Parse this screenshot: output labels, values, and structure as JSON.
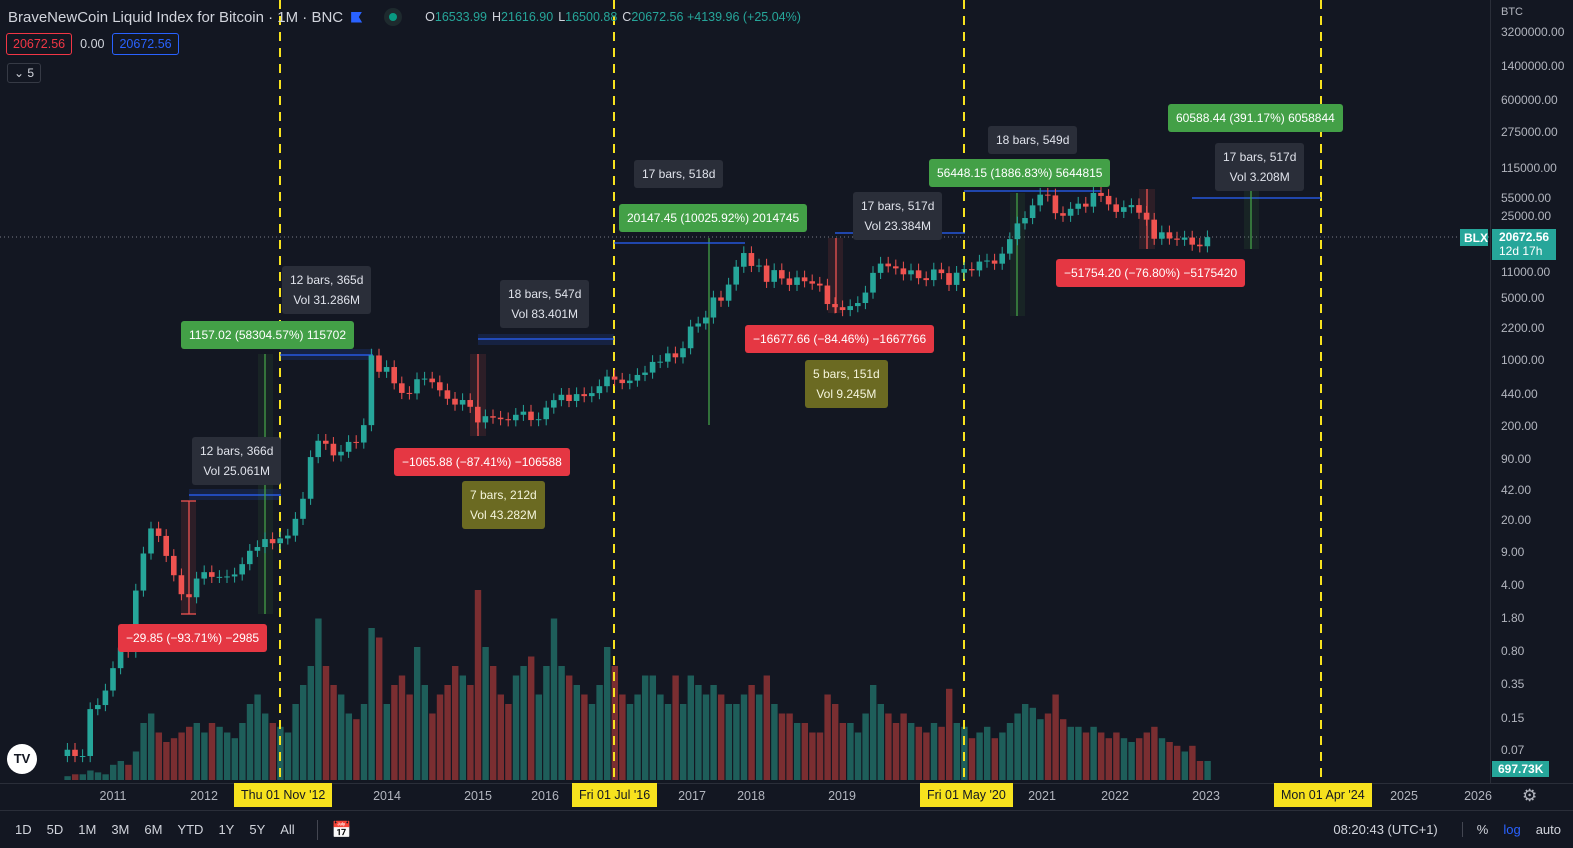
{
  "header": {
    "title": "BraveNewCoin Liquid Index for Bitcoin · 1M · BNC",
    "o_label": "O",
    "o": "16533.99",
    "h_label": "H",
    "h": "21616.90",
    "l_label": "L",
    "l": "16500.88",
    "c_label": "C",
    "c": "20672.56",
    "change": "+4139.96 (+25.04%)",
    "sell": "20672.56",
    "spread": "0.00",
    "buy": "20672.56",
    "indicators_toggle": "5"
  },
  "price_axis": {
    "currency": "BTC",
    "ticks": [
      "3200000.00",
      "1400000.00",
      "600000.00",
      "275000.00",
      "115000.00",
      "55000.00",
      "25000.00",
      "11000.00",
      "5000.00",
      "2200.00",
      "1000.00",
      "440.00",
      "200.00",
      "90.00",
      "42.00",
      "20.00",
      "9.00",
      "4.00",
      "1.80",
      "0.80",
      "0.35",
      "0.15",
      "0.07"
    ],
    "symbol_tag": "BLX",
    "last_price": "20672.56",
    "countdown": "12d 17h",
    "volume_tag": "697.73K"
  },
  "time_axis": {
    "years": [
      "2011",
      "2012",
      "2014",
      "2015",
      "2016",
      "2017",
      "2018",
      "2019",
      "2021",
      "2022",
      "2023",
      "2025",
      "2026"
    ],
    "highlights": [
      "Thu 01 Nov '12",
      "Fri 01 Jul '16",
      "Fri 01 May '20",
      "Mon 01 Apr '24"
    ]
  },
  "annotations": [
    {
      "l1": "12 bars, 366d",
      "l2": "Vol 25.061M"
    },
    {
      "l1": "12 bars, 365d",
      "l2": "Vol 31.286M"
    },
    {
      "l1": "1157.02 (58304.57%) 115702"
    },
    {
      "l1": "−29.85 (−93.71%) −2985"
    },
    {
      "l1": "−1065.88 (−87.41%) −106588"
    },
    {
      "l1": "7 bars, 212d",
      "l2": "Vol 43.282M"
    },
    {
      "l1": "18 bars, 547d",
      "l2": "Vol 83.401M"
    },
    {
      "l1": "17 bars, 518d"
    },
    {
      "l1": "20147.45 (10025.92%) 2014745"
    },
    {
      "l1": "17 bars, 517d",
      "l2": "Vol 23.384M"
    },
    {
      "l1": "−16677.66 (−84.46%) −1667766"
    },
    {
      "l1": "5 bars, 151d",
      "l2": "Vol 9.245M"
    },
    {
      "l1": "18 bars, 549d"
    },
    {
      "l1": "56448.15 (1886.83%) 5644815"
    },
    {
      "l1": "−51754.20 (−76.80%) −5175420"
    },
    {
      "l1": "17 bars, 517d",
      "l2": "Vol 3.208M"
    },
    {
      "l1": "60588.44 (391.17%) 6058844"
    }
  ],
  "bottom": {
    "ranges": [
      "1D",
      "5D",
      "1M",
      "3M",
      "6M",
      "YTD",
      "1Y",
      "5Y",
      "All"
    ],
    "time": "08:20:43 (UTC+1)",
    "percent": "%",
    "log": "log",
    "auto": "auto"
  },
  "colors": {
    "up": "#26a69a",
    "down": "#ef5350",
    "marker": "#f7e21e"
  },
  "chart_data": {
    "type": "candlestick",
    "start": "2010-07",
    "first_open": 0.06,
    "closes": [
      0.07,
      0.06,
      0.06,
      0.19,
      0.21,
      0.3,
      0.52,
      0.86,
      0.78,
      3.5,
      8.7,
      16.1,
      13.4,
      8.2,
      5.1,
      3.2,
      2.97,
      4.7,
      5.5,
      4.9,
      4.9,
      4.95,
      5.2,
      6.7,
      9.3,
      10.2,
      12.4,
      11.2,
      12.6,
      13.5,
      20.4,
      33.4,
      93,
      139,
      129,
      97,
      106,
      135,
      133,
      204,
      1130,
      757,
      850,
      570,
      450,
      445,
      630,
      640,
      585,
      480,
      390,
      338,
      378,
      320,
      218,
      254,
      245,
      236,
      230,
      263,
      284,
      231,
      236,
      314,
      377,
      430,
      369,
      437,
      416,
      448,
      531,
      673,
      624,
      573,
      609,
      700,
      742,
      964,
      970,
      1190,
      1080,
      1350,
      2300,
      2480,
      2870,
      4700,
      4340,
      6450,
      10000,
      14000,
      10200,
      10300,
      6900,
      9200,
      7500,
      6400,
      7700,
      7000,
      6600,
      6300,
      4000,
      3700,
      3450,
      3800,
      4100,
      5300,
      8600,
      10800,
      10100,
      9600,
      8300,
      9150,
      7550,
      7200,
      9350,
      8550,
      6400,
      8630,
      9450,
      9140,
      11350,
      11650,
      10780,
      13800,
      19700,
      29000,
      33100,
      45200,
      58800,
      57700,
      37300,
      35000,
      41500,
      47100,
      43800,
      61300,
      57000,
      46300,
      38500,
      43200,
      45500,
      37700,
      31800,
      19900,
      23300,
      20000,
      19400,
      20500,
      17200,
      16540,
      20672
    ],
    "volume_relative": [
      2,
      3,
      3,
      5,
      4,
      3,
      8,
      10,
      8,
      15,
      30,
      35,
      25,
      20,
      22,
      25,
      28,
      30,
      25,
      30,
      28,
      25,
      22,
      30,
      40,
      45,
      35,
      30,
      28,
      25,
      40,
      50,
      60,
      85,
      60,
      50,
      45,
      35,
      32,
      40,
      80,
      75,
      40,
      50,
      55,
      45,
      70,
      50,
      35,
      45,
      50,
      60,
      55,
      50,
      100,
      70,
      60,
      45,
      40,
      55,
      60,
      65,
      45,
      60,
      85,
      60,
      55,
      50,
      45,
      40,
      50,
      70,
      60,
      45,
      40,
      45,
      55,
      55,
      45,
      40,
      55,
      40,
      55,
      50,
      45,
      50,
      45,
      40,
      40,
      45,
      50,
      45,
      55,
      40,
      35,
      35,
      30,
      30,
      25,
      25,
      45,
      40,
      30,
      30,
      25,
      35,
      50,
      40,
      35,
      30,
      35,
      30,
      28,
      25,
      30,
      28,
      48,
      30,
      28,
      22,
      25,
      28,
      22,
      25,
      30,
      35,
      40,
      38,
      32,
      35,
      45,
      32,
      28,
      28,
      25,
      28,
      25,
      22,
      25,
      22,
      20,
      22,
      25,
      28,
      22,
      20,
      18,
      15,
      18,
      10,
      10
    ],
    "y_scale": "log",
    "ylim": [
      0.07,
      3200000
    ]
  }
}
